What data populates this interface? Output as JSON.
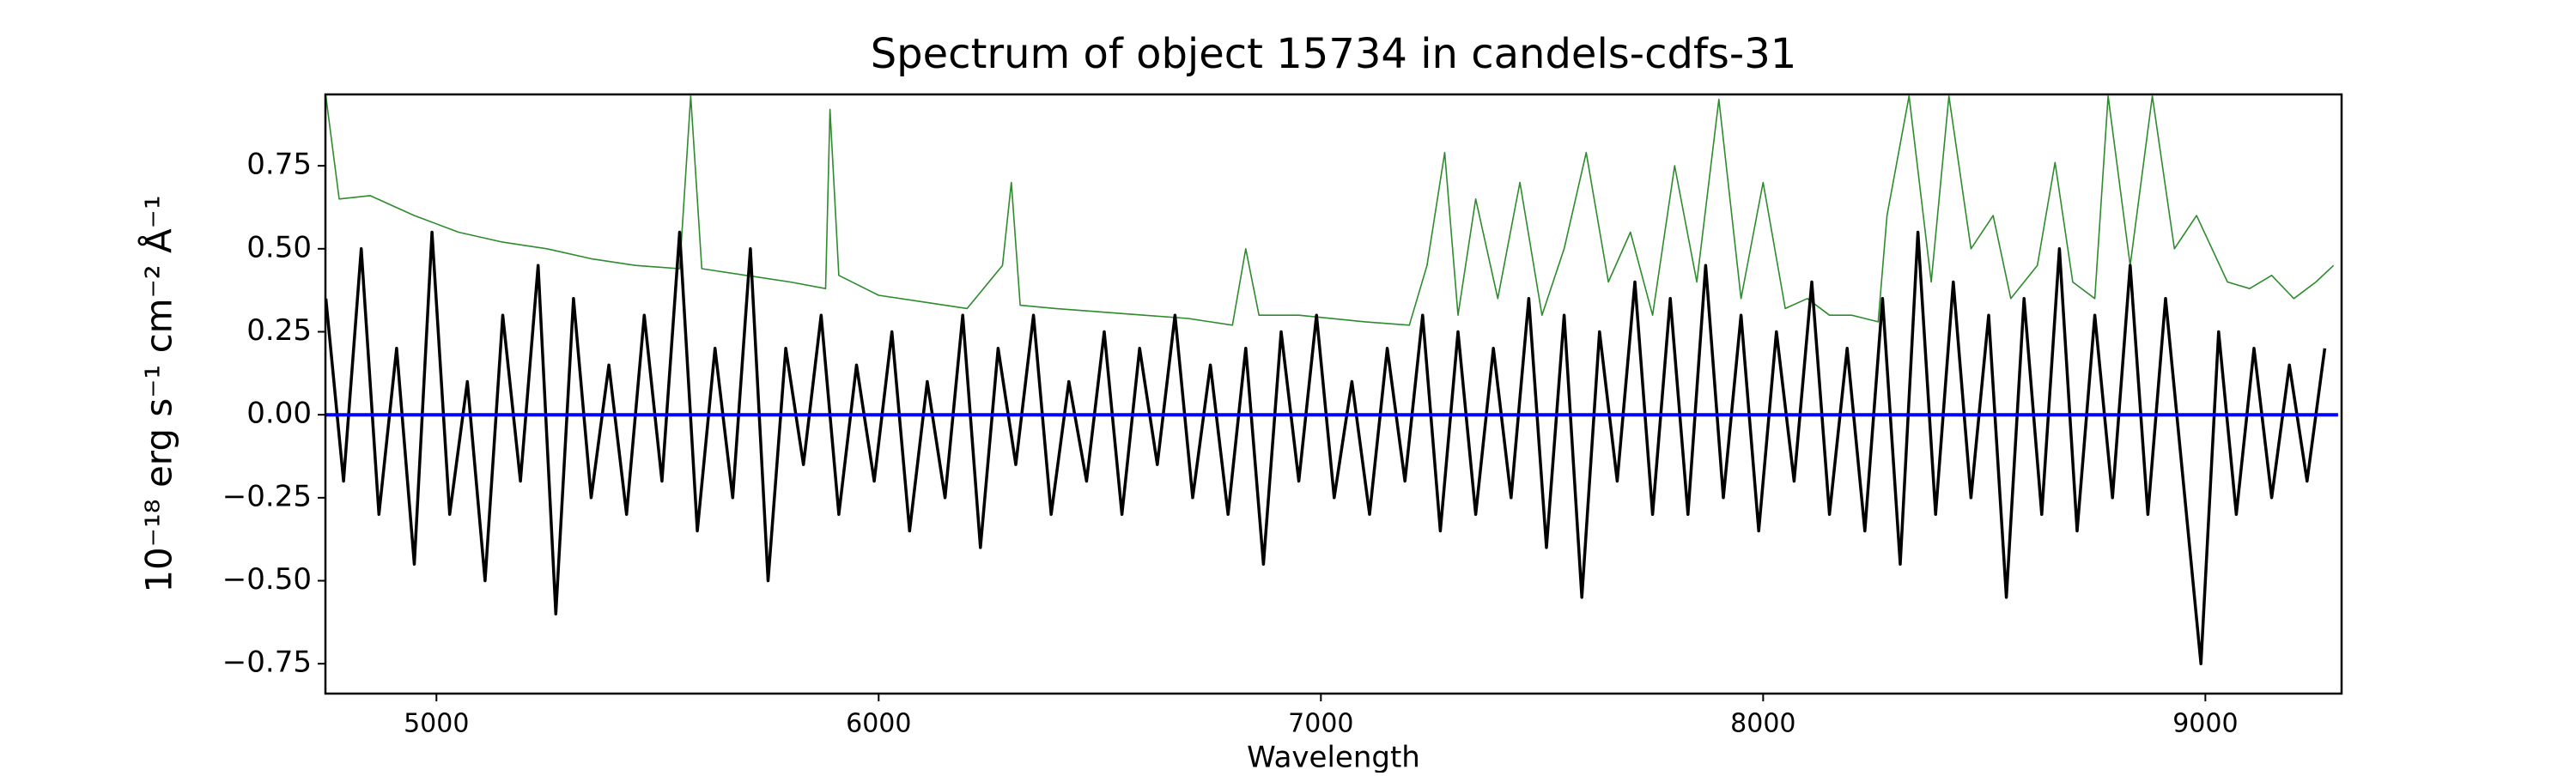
{
  "chart_data": {
    "type": "line",
    "title": "Spectrum of object 15734 in candels-cdfs-31",
    "xlabel": "Wavelength",
    "ylabel": "10⁻¹⁸ erg s⁻¹ cm⁻² Å⁻¹",
    "xlim": [
      4749,
      9308
    ],
    "ylim": [
      -0.84,
      0.965
    ],
    "xticks": [
      5000,
      6000,
      7000,
      8000,
      9000
    ],
    "yticks": [
      {
        "value": -0.75,
        "label": "−0.75"
      },
      {
        "value": -0.5,
        "label": "−0.50"
      },
      {
        "value": -0.25,
        "label": "−0.25"
      },
      {
        "value": 0,
        "label": "0.00"
      },
      0.25,
      {
        "value": 0.5,
        "label": "0.50"
      },
      0.75
    ],
    "series": [
      {
        "color": "#2e8b2e",
        "x": [
          4750,
          4780,
          4850,
          4950,
          5050,
          5150,
          5250,
          5350,
          5450,
          5550,
          5575,
          5600,
          5700,
          5800,
          5880,
          5890,
          5910,
          6000,
          6100,
          6200,
          6280,
          6300,
          6320,
          6400,
          6500,
          6600,
          6700,
          6800,
          6830,
          6860,
          6950,
          7100,
          7200,
          7240,
          7280,
          7310,
          7350,
          7400,
          7450,
          7500,
          7550,
          7600,
          7650,
          7700,
          7750,
          7800,
          7850,
          7900,
          7950,
          8000,
          8050,
          8100,
          8150,
          8200,
          8260,
          8280,
          8330,
          8380,
          8420,
          8470,
          8520,
          8560,
          8620,
          8660,
          8700,
          8750,
          8780,
          8830,
          8880,
          8930,
          8980,
          9050,
          9100,
          9150,
          9200,
          9250,
          9290
        ],
        "values": [
          0.96,
          0.65,
          0.66,
          0.6,
          0.55,
          0.52,
          0.5,
          0.47,
          0.45,
          0.44,
          0.96,
          0.44,
          0.42,
          0.4,
          0.38,
          0.92,
          0.42,
          0.36,
          0.34,
          0.32,
          0.45,
          0.7,
          0.33,
          0.32,
          0.31,
          0.3,
          0.29,
          0.27,
          0.5,
          0.3,
          0.3,
          0.28,
          0.27,
          0.45,
          0.79,
          0.3,
          0.65,
          0.35,
          0.7,
          0.3,
          0.5,
          0.79,
          0.4,
          0.55,
          0.3,
          0.75,
          0.4,
          0.95,
          0.35,
          0.7,
          0.32,
          0.35,
          0.3,
          0.3,
          0.28,
          0.6,
          0.96,
          0.4,
          0.96,
          0.5,
          0.6,
          0.35,
          0.45,
          0.76,
          0.4,
          0.35,
          0.96,
          0.45,
          0.96,
          0.5,
          0.6,
          0.4,
          0.38,
          0.42,
          0.35,
          0.4,
          0.45
        ]
      },
      {
        "color": "#000000",
        "x": [
          4750,
          4790,
          4830,
          4870,
          4910,
          4950,
          4990,
          5030,
          5070,
          5110,
          5150,
          5190,
          5230,
          5270,
          5310,
          5350,
          5390,
          5430,
          5470,
          5510,
          5550,
          5590,
          5630,
          5670,
          5710,
          5750,
          5790,
          5830,
          5870,
          5910,
          5950,
          5990,
          6030,
          6070,
          6110,
          6150,
          6190,
          6230,
          6270,
          6310,
          6350,
          6390,
          6430,
          6470,
          6510,
          6550,
          6590,
          6630,
          6670,
          6710,
          6750,
          6790,
          6830,
          6870,
          6910,
          6950,
          6990,
          7030,
          7070,
          7110,
          7150,
          7190,
          7230,
          7270,
          7310,
          7350,
          7390,
          7430,
          7470,
          7510,
          7550,
          7590,
          7630,
          7670,
          7710,
          7750,
          7790,
          7830,
          7870,
          7910,
          7950,
          7990,
          8030,
          8070,
          8110,
          8150,
          8190,
          8230,
          8270,
          8310,
          8350,
          8390,
          8430,
          8470,
          8510,
          8550,
          8590,
          8630,
          8670,
          8710,
          8750,
          8790,
          8830,
          8870,
          8910,
          8950,
          8990,
          9030,
          9070,
          9110,
          9150,
          9190,
          9230,
          9270
        ],
        "values": [
          0.35,
          -0.2,
          0.5,
          -0.3,
          0.2,
          -0.45,
          0.55,
          -0.3,
          0.1,
          -0.5,
          0.3,
          -0.2,
          0.45,
          -0.6,
          0.35,
          -0.25,
          0.15,
          -0.3,
          0.3,
          -0.2,
          0.55,
          -0.35,
          0.2,
          -0.25,
          0.5,
          -0.5,
          0.2,
          -0.15,
          0.3,
          -0.3,
          0.15,
          -0.2,
          0.25,
          -0.35,
          0.1,
          -0.25,
          0.3,
          -0.4,
          0.2,
          -0.15,
          0.3,
          -0.3,
          0.1,
          -0.2,
          0.25,
          -0.3,
          0.2,
          -0.15,
          0.3,
          -0.25,
          0.15,
          -0.3,
          0.2,
          -0.45,
          0.25,
          -0.2,
          0.3,
          -0.25,
          0.1,
          -0.3,
          0.2,
          -0.2,
          0.3,
          -0.35,
          0.25,
          -0.3,
          0.2,
          -0.25,
          0.35,
          -0.4,
          0.3,
          -0.55,
          0.25,
          -0.2,
          0.4,
          -0.3,
          0.35,
          -0.3,
          0.45,
          -0.25,
          0.3,
          -0.35,
          0.25,
          -0.2,
          0.4,
          -0.3,
          0.2,
          -0.35,
          0.35,
          -0.45,
          0.55,
          -0.3,
          0.4,
          -0.25,
          0.3,
          -0.55,
          0.35,
          -0.3,
          0.5,
          -0.35,
          0.3,
          -0.25,
          0.45,
          -0.3,
          0.35,
          -0.2,
          -0.75,
          0.25,
          -0.3,
          0.2,
          -0.25,
          0.15,
          -0.2,
          0.2
        ]
      },
      {
        "color": "#0000ff",
        "x": [
          4750,
          9300
        ],
        "values": [
          0,
          0
        ]
      }
    ]
  }
}
